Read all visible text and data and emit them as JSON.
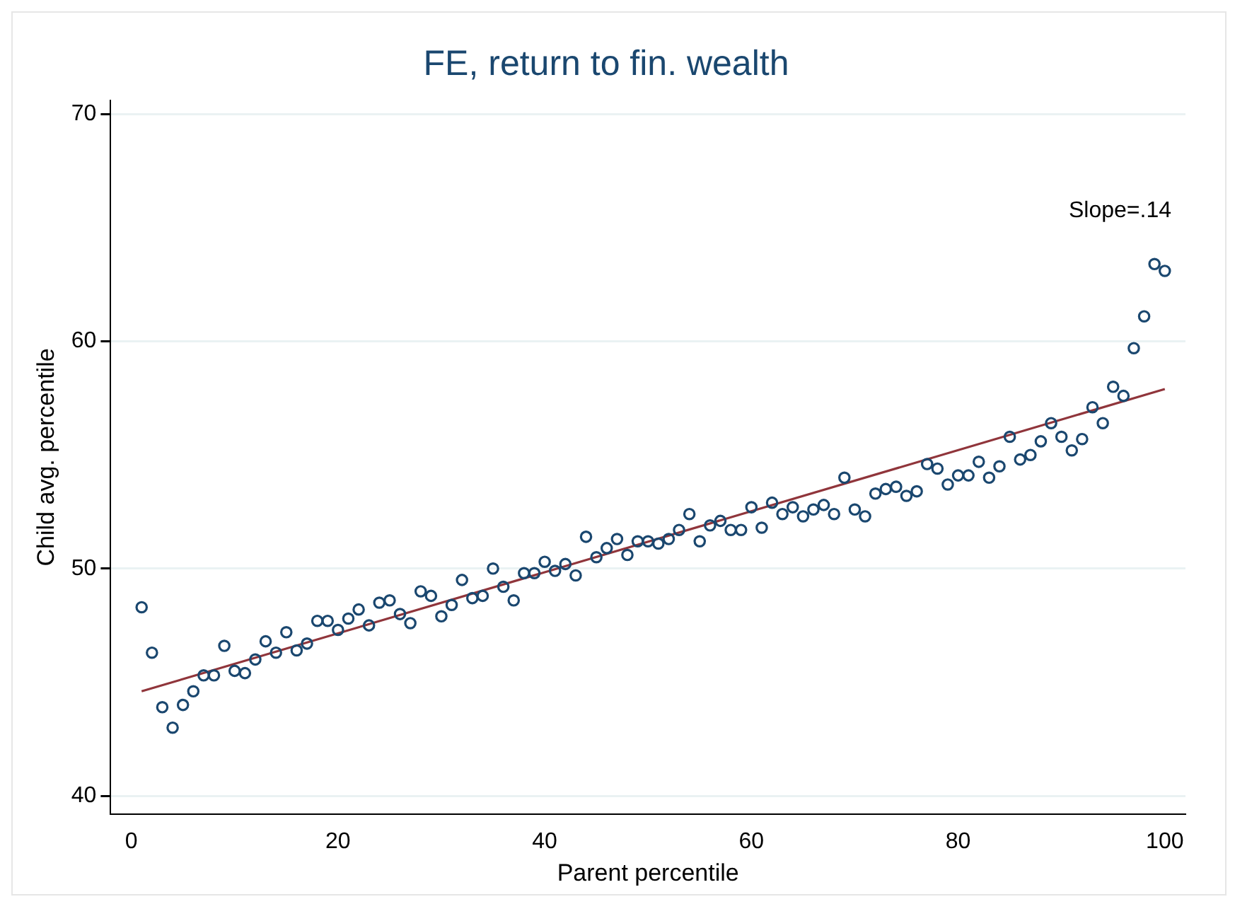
{
  "chart_data": {
    "type": "scatter",
    "title": "FE, return to fin. wealth",
    "xlabel": "Parent percentile",
    "ylabel": "Child avg. percentile",
    "annotations": [
      "Slope=.14"
    ],
    "x": [
      1,
      2,
      3,
      4,
      5,
      6,
      7,
      8,
      9,
      10,
      11,
      12,
      13,
      14,
      15,
      16,
      17,
      18,
      19,
      20,
      21,
      22,
      23,
      24,
      25,
      26,
      27,
      28,
      29,
      30,
      31,
      32,
      33,
      34,
      35,
      36,
      37,
      38,
      39,
      40,
      41,
      42,
      43,
      44,
      45,
      46,
      47,
      48,
      49,
      50,
      51,
      52,
      53,
      54,
      55,
      56,
      57,
      58,
      59,
      60,
      61,
      62,
      63,
      64,
      65,
      66,
      67,
      68,
      69,
      70,
      71,
      72,
      73,
      74,
      75,
      76,
      77,
      78,
      79,
      80,
      81,
      82,
      83,
      84,
      85,
      86,
      87,
      88,
      89,
      90,
      91,
      92,
      93,
      94,
      95,
      96,
      97,
      98,
      99,
      100
    ],
    "series": [
      {
        "color": "#1a476f",
        "marker": "circle",
        "values": [
          48.3,
          46.3,
          43.9,
          43.0,
          44.0,
          44.6,
          45.3,
          45.3,
          46.6,
          45.5,
          45.4,
          46.0,
          46.8,
          46.3,
          47.2,
          46.4,
          46.7,
          47.7,
          47.7,
          47.3,
          47.8,
          48.2,
          47.5,
          48.5,
          48.6,
          48.0,
          47.6,
          49.0,
          48.8,
          47.9,
          48.4,
          49.5,
          48.7,
          48.8,
          50.0,
          49.2,
          48.6,
          49.8,
          49.8,
          50.3,
          49.9,
          50.2,
          49.7,
          51.4,
          50.5,
          50.9,
          51.3,
          50.6,
          51.2,
          51.2,
          51.1,
          51.3,
          51.7,
          52.4,
          51.2,
          51.9,
          52.1,
          51.7,
          51.7,
          52.7,
          51.8,
          52.9,
          52.4,
          52.7,
          52.3,
          52.6,
          52.8,
          52.4,
          54.0,
          52.6,
          52.3,
          53.3,
          53.5,
          53.6,
          53.2,
          53.4,
          54.6,
          54.4,
          53.7,
          54.1,
          54.1,
          54.7,
          54.0,
          54.5,
          55.8,
          54.8,
          55.0,
          55.6,
          56.4,
          55.8,
          55.2,
          55.7,
          57.1,
          56.4,
          58.0,
          57.6,
          59.7,
          61.1,
          63.4,
          63.1
        ]
      },
      {
        "type": "line",
        "color": "#90353b",
        "marker": "none",
        "x": [
          1,
          100
        ],
        "values": [
          44.6,
          57.9
        ]
      }
    ],
    "xlim": [
      -2,
      102
    ],
    "xticks": [
      0,
      20,
      40,
      60,
      80,
      100
    ],
    "ylim": [
      39.2,
      70.6
    ],
    "yticks": [
      40,
      50,
      60,
      70
    ],
    "grid": "y",
    "legend": false
  }
}
